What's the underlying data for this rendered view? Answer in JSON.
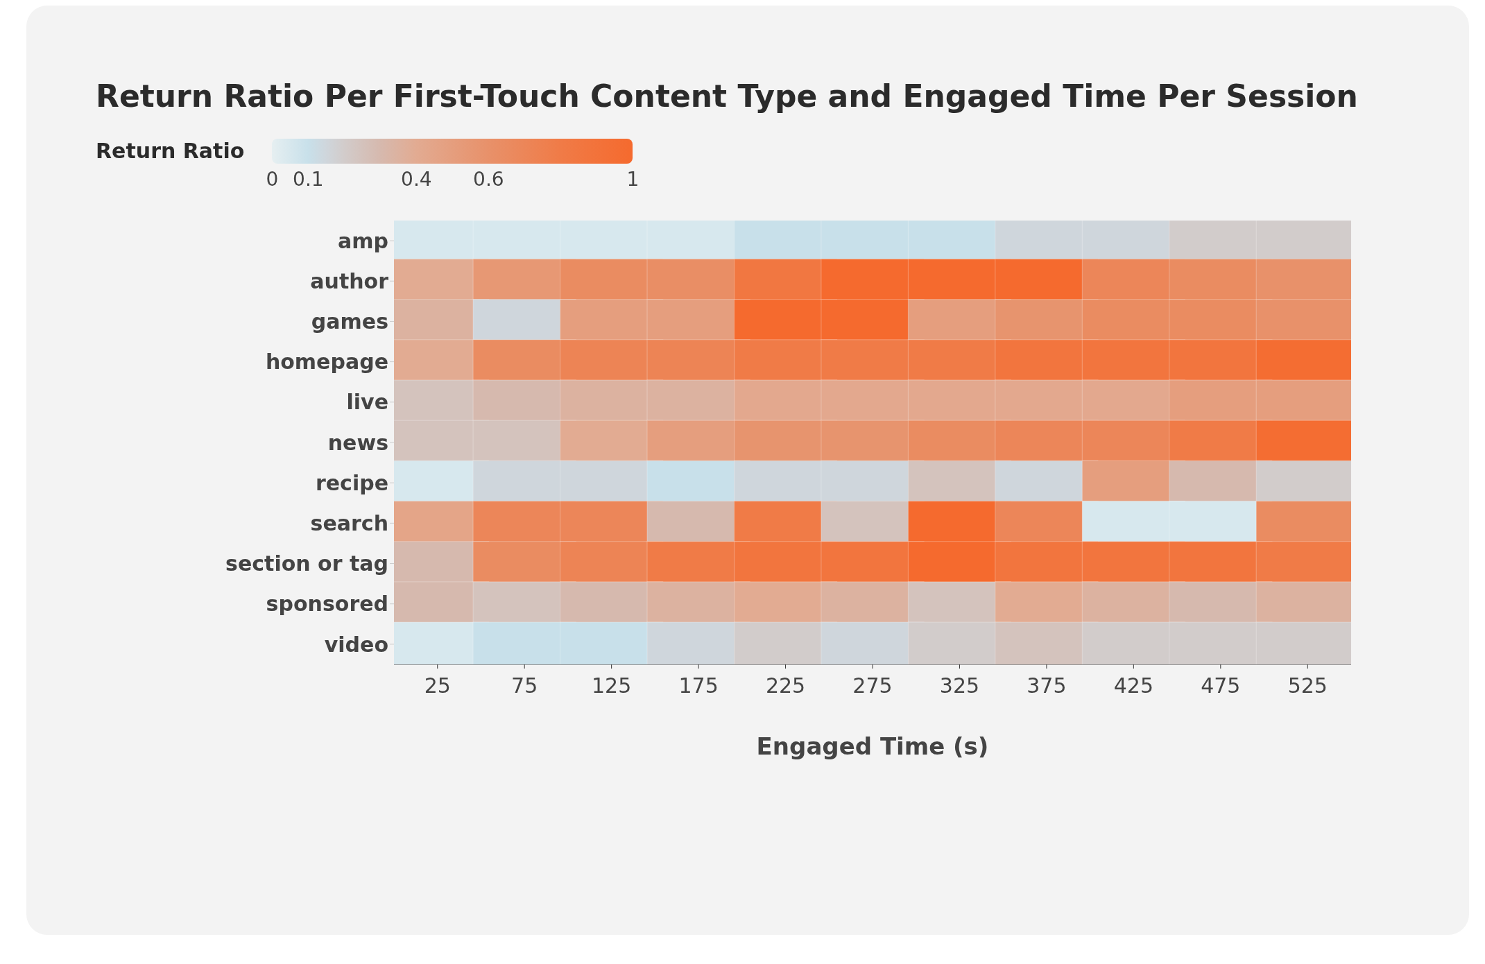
{
  "chart_data": {
    "type": "heatmap",
    "title": "Return Ratio Per First-Touch Content Type and Engaged Time Per Session",
    "clabel": "Return Ratio",
    "xlabel": "Engaged Time (s)",
    "categories": [
      "25",
      "75",
      "125",
      "175",
      "225",
      "275",
      "325",
      "375",
      "425",
      "475",
      "525"
    ],
    "y_categories": [
      "amp",
      "author",
      "games",
      "homepage",
      "live",
      "news",
      "recipe",
      "search",
      "section or tag",
      "sponsored",
      "video"
    ],
    "cells": [
      [
        0.05,
        0.05,
        0.05,
        0.05,
        0.1,
        0.1,
        0.1,
        0.15,
        0.15,
        0.2,
        0.2
      ],
      [
        0.4,
        0.55,
        0.65,
        0.63,
        0.85,
        1,
        1,
        1,
        0.7,
        0.65,
        0.6
      ],
      [
        0.35,
        0.15,
        0.5,
        0.5,
        1,
        1,
        0.5,
        0.58,
        0.65,
        0.65,
        0.6
      ],
      [
        0.4,
        0.65,
        0.72,
        0.72,
        0.8,
        0.8,
        0.8,
        0.87,
        0.87,
        0.87,
        0.97
      ],
      [
        0.25,
        0.3,
        0.35,
        0.35,
        0.42,
        0.42,
        0.42,
        0.42,
        0.42,
        0.5,
        0.5
      ],
      [
        0.25,
        0.25,
        0.4,
        0.5,
        0.58,
        0.58,
        0.65,
        0.7,
        0.7,
        0.8,
        0.97
      ],
      [
        0.05,
        0.15,
        0.15,
        0.1,
        0.15,
        0.15,
        0.25,
        0.15,
        0.5,
        0.3,
        0.2
      ],
      [
        0.45,
        0.7,
        0.7,
        0.3,
        0.8,
        0.25,
        1,
        0.7,
        0.05,
        0.05,
        0.65
      ],
      [
        0.3,
        0.65,
        0.72,
        0.8,
        0.87,
        0.87,
        1,
        0.87,
        0.87,
        0.87,
        0.8
      ],
      [
        0.3,
        0.25,
        0.3,
        0.35,
        0.4,
        0.35,
        0.25,
        0.4,
        0.35,
        0.3,
        0.35
      ],
      [
        0.05,
        0.1,
        0.1,
        0.15,
        0.2,
        0.15,
        0.2,
        0.25,
        0.2,
        0.2,
        0.2
      ]
    ],
    "clim": [
      0,
      1
    ],
    "cticks": [
      0,
      0.1,
      0.4,
      0.6,
      1
    ]
  }
}
